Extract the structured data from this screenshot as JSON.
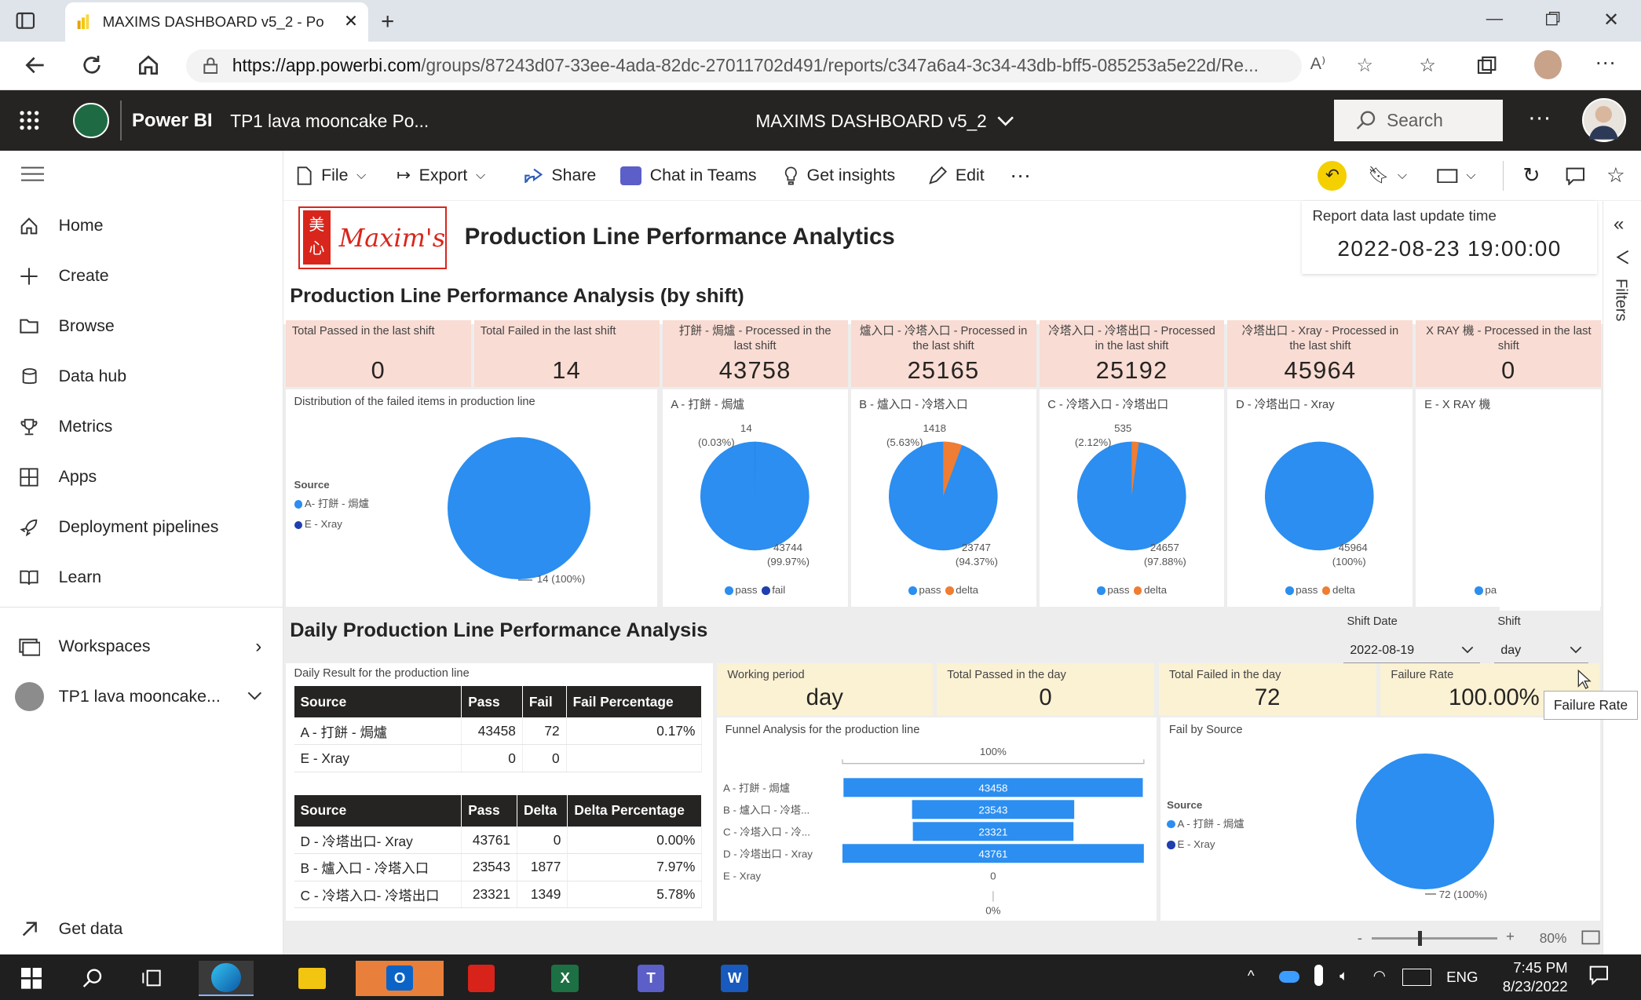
{
  "browser": {
    "tab_title": "MAXIMS DASHBOARD v5_2 - Po",
    "url_host": "https://app.powerbi.com",
    "url_path": "/groups/87243d07-33ee-4ada-82dc-27011702d491/reports/c347a6a4-3c34-43db-bff5-085253a5e22d/Re..."
  },
  "header": {
    "app_name": "Power BI",
    "workspace_crumb": "TP1 lava mooncake Po...",
    "report_title": "MAXIMS DASHBOARD v5_2",
    "search_placeholder": "Search"
  },
  "nav": {
    "items": [
      {
        "label": "Home",
        "icon": "home-icon"
      },
      {
        "label": "Create",
        "icon": "plus-icon"
      },
      {
        "label": "Browse",
        "icon": "folder-icon"
      },
      {
        "label": "Data hub",
        "icon": "cylinder-icon"
      },
      {
        "label": "Metrics",
        "icon": "trophy-icon"
      },
      {
        "label": "Apps",
        "icon": "grid-icon"
      },
      {
        "label": "Deployment pipelines",
        "icon": "rocket-icon"
      },
      {
        "label": "Learn",
        "icon": "book-icon"
      }
    ],
    "workspaces_label": "Workspaces",
    "current_workspace": "TP1 lava mooncake...",
    "get_data": "Get data"
  },
  "toolbar": {
    "file": "File",
    "export": "Export",
    "share": "Share",
    "chat": "Chat in Teams",
    "insights": "Get insights",
    "edit": "Edit"
  },
  "report": {
    "logo_text": "Maxim's",
    "logo_chinese": "美心",
    "title": "Production Line Performance Analytics",
    "update_label": "Report data last update time",
    "update_value": "2022-08-23 19:00:00",
    "shift_section_title": "Production Line Performance Analysis (by shift)",
    "daily_section_title": "Daily Production Line Performance Analysis",
    "shift_cards": [
      {
        "label": "Total Passed in the last shift",
        "value": "0"
      },
      {
        "label": "Total Failed in the last shift",
        "value": "14"
      },
      {
        "label": "打餅 - 焗爐 - Processed in the last shift",
        "value": "43758"
      },
      {
        "label": "爐入口 - 冷塔入口 - Processed in the last shift",
        "value": "25165"
      },
      {
        "label": "冷塔入口 - 冷塔出口 - Processed in the last shift",
        "value": "25192"
      },
      {
        "label": "冷塔出口 - Xray - Processed in the last shift",
        "value": "45964"
      },
      {
        "label": "X RAY 機 - Processed in the last shift",
        "value": "0"
      }
    ],
    "dist": {
      "title": "Distribution of the failed items in production line",
      "legend_title": "Source",
      "legend": [
        "A- 打餅 - 焗爐",
        "E - Xray"
      ],
      "label": "14 (100%)"
    },
    "pies": [
      {
        "title": "A - 打餅 - 焗爐",
        "small_label": "14",
        "small_pct": "(0.03%)",
        "big_label": "43744",
        "big_pct": "(99.97%)",
        "legend": [
          "pass",
          "fail"
        ],
        "slice": 0.0003
      },
      {
        "title": "B - 爐入口 - 冷塔入口",
        "small_label": "1418",
        "small_pct": "(5.63%)",
        "big_label": "23747",
        "big_pct": "(94.37%)",
        "legend": [
          "pass",
          "delta"
        ],
        "slice": 0.0563
      },
      {
        "title": "C - 冷塔入口 - 冷塔出口",
        "small_label": "535",
        "small_pct": "(2.12%)",
        "big_label": "24657",
        "big_pct": "(97.88%)",
        "legend": [
          "pass",
          "delta"
        ],
        "slice": 0.0212
      },
      {
        "title": "D - 冷塔出口 - Xray",
        "small_label": "",
        "small_pct": "",
        "big_label": "45964",
        "big_pct": "(100%)",
        "legend": [
          "pass",
          "delta"
        ],
        "slice": 0
      },
      {
        "title": "E - X RAY 機",
        "legend": [
          "pa"
        ]
      }
    ],
    "slicers": {
      "date_label": "Shift Date",
      "date_value": "2022-08-19",
      "shift_label": "Shift",
      "shift_value": "day"
    },
    "daily_table_title": "Daily Result for the production line",
    "table1": {
      "headers": [
        "Source",
        "Pass",
        "Fail",
        "Fail Percentage"
      ],
      "rows": [
        [
          "A - 打餅 - 焗爐",
          "43458",
          "72",
          "0.17%"
        ],
        [
          "E - Xray",
          "0",
          "0",
          ""
        ]
      ]
    },
    "table2": {
      "headers": [
        "Source",
        "Pass",
        "Delta",
        "Delta Percentage"
      ],
      "rows": [
        [
          "D - 冷塔出口- Xray",
          "43761",
          "0",
          "0.00%"
        ],
        [
          "B - 爐入口 - 冷塔入口",
          "23543",
          "1877",
          "7.97%"
        ],
        [
          "C - 冷塔入口- 冷塔出口",
          "23321",
          "1349",
          "5.78%"
        ]
      ]
    },
    "daily_cards": [
      {
        "label": "Working period",
        "value": "day"
      },
      {
        "label": "Total Passed in the day",
        "value": "0"
      },
      {
        "label": "Total Failed in the day",
        "value": "72"
      },
      {
        "label": "Failure Rate",
        "value": "100.00%"
      }
    ],
    "tooltip": "Failure Rate",
    "funnel": {
      "title": "Funnel Analysis for the production line",
      "top_pct": "100%",
      "bottom_pct": "0%",
      "zero_label": "0",
      "stages": [
        {
          "label": "A - 打餅 - 焗爐",
          "value": 43458
        },
        {
          "label": "B - 爐入口 - 冷塔...",
          "value": 23543
        },
        {
          "label": "C - 冷塔入口 - 冷...",
          "value": 23321
        },
        {
          "label": "D - 冷塔出口 - Xray",
          "value": 43761
        },
        {
          "label": "E - Xray",
          "value": 0
        }
      ]
    },
    "failsrc": {
      "title": "Fail by Source",
      "legend_title": "Source",
      "legend": [
        "A - 打餅 - 焗爐",
        "E - Xray"
      ],
      "label": "72 (100%)"
    },
    "zoom": "80%",
    "filters_label": "Filters"
  },
  "taskbar": {
    "lang": "ENG",
    "time": "7:45 PM",
    "date": "8/23/2022"
  },
  "colors": {
    "pass": "#2b8ef0",
    "fail": "#1f3fb0",
    "delta": "#ef7d33",
    "header_bg": "#252423",
    "card_pink": "#f9dcd3",
    "card_yellow": "#fbf1d3",
    "logo_red": "#d9261c"
  }
}
